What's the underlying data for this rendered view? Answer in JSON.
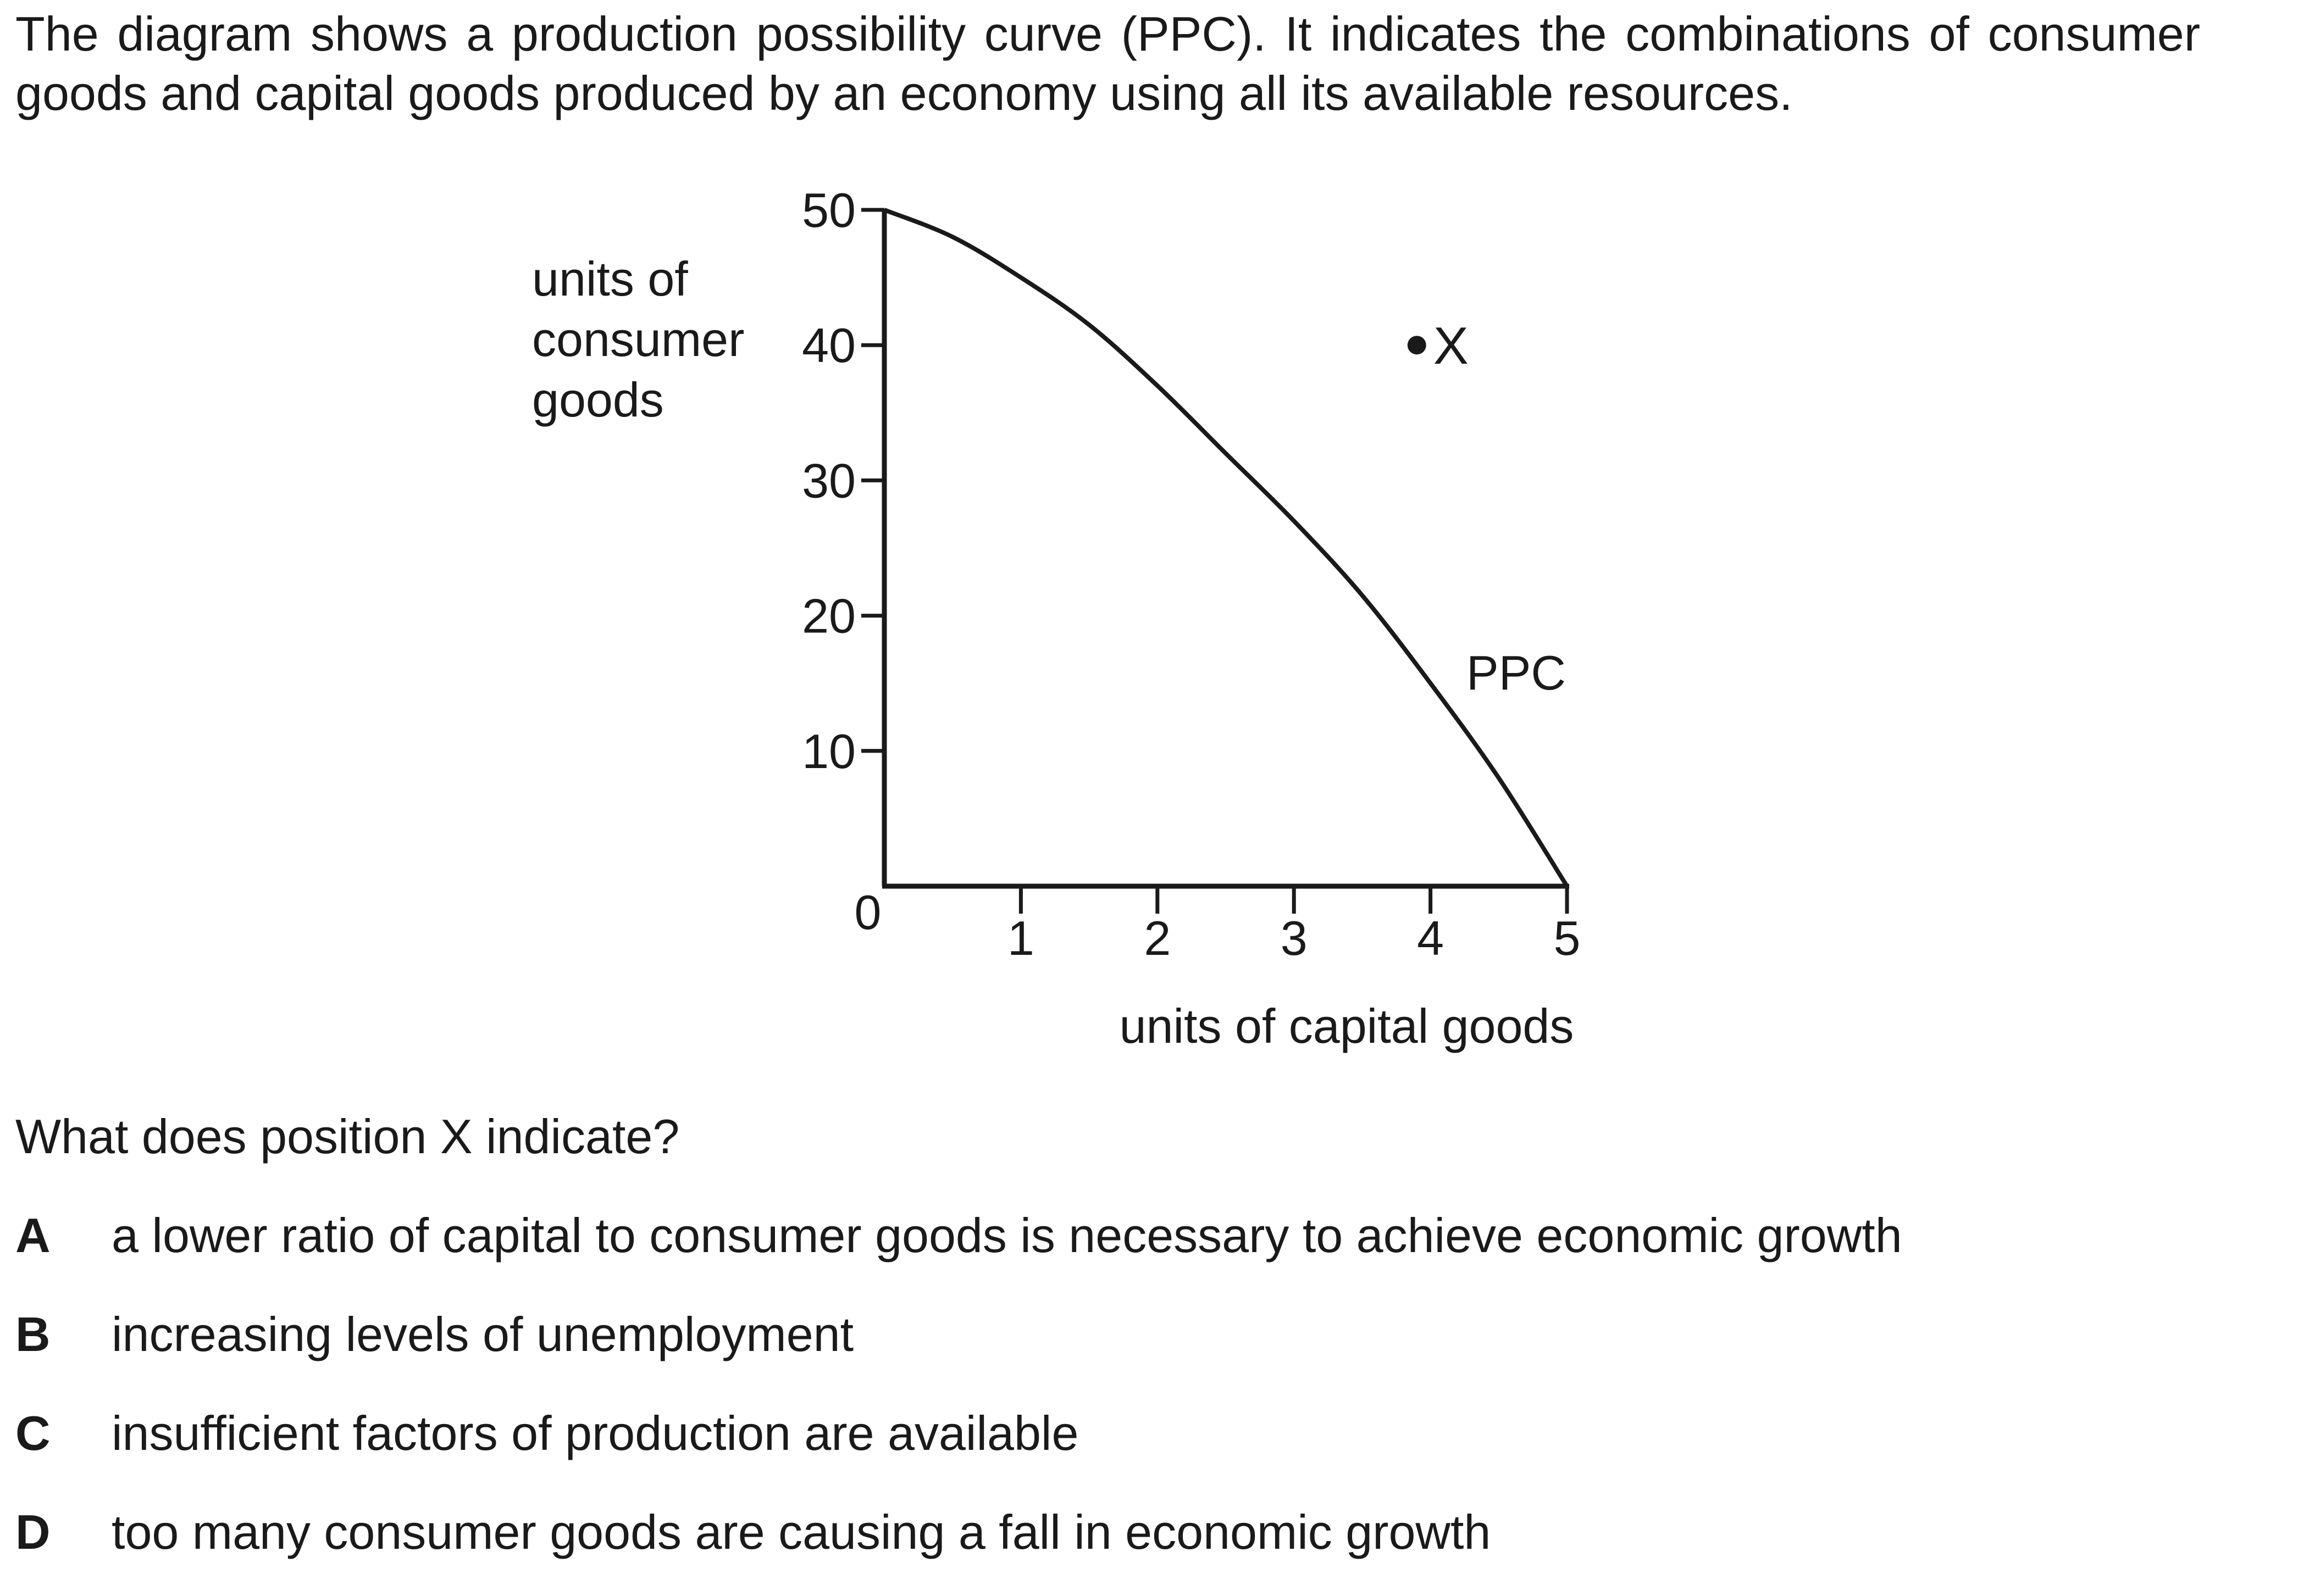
{
  "intro": "The diagram shows a production possibility curve (PPC). It indicates the combinations of consumer goods and capital goods produced by an economy using all its available resources.",
  "chart_data": {
    "type": "line",
    "ylabel_lines": [
      "units of",
      "consumer",
      "goods"
    ],
    "xlabel": "units of capital goods",
    "origin_label": "0",
    "xlim": [
      0,
      5
    ],
    "ylim": [
      0,
      50
    ],
    "x_ticks": [
      "1",
      "2",
      "3",
      "4",
      "5"
    ],
    "y_ticks": [
      "10",
      "20",
      "30",
      "40",
      "50"
    ],
    "series": [
      {
        "name": "PPC",
        "x": [
          0,
          0.5,
          1,
          1.5,
          2,
          2.5,
          3,
          3.5,
          4,
          4.5,
          5
        ],
        "y": [
          50,
          48,
          45,
          41.5,
          37,
          32,
          27,
          21.5,
          15,
          8,
          0
        ]
      }
    ],
    "points": [
      {
        "label": "X",
        "x": 3.9,
        "y": 40
      }
    ]
  },
  "question": "What does position X indicate?",
  "options": [
    {
      "letter": "A",
      "text": "a lower ratio of capital to consumer goods is necessary to achieve economic growth"
    },
    {
      "letter": "B",
      "text": "increasing levels of unemployment"
    },
    {
      "letter": "C",
      "text": "insufficient factors of production are available"
    },
    {
      "letter": "D",
      "text": "too many consumer goods are causing a fall in economic growth"
    }
  ]
}
